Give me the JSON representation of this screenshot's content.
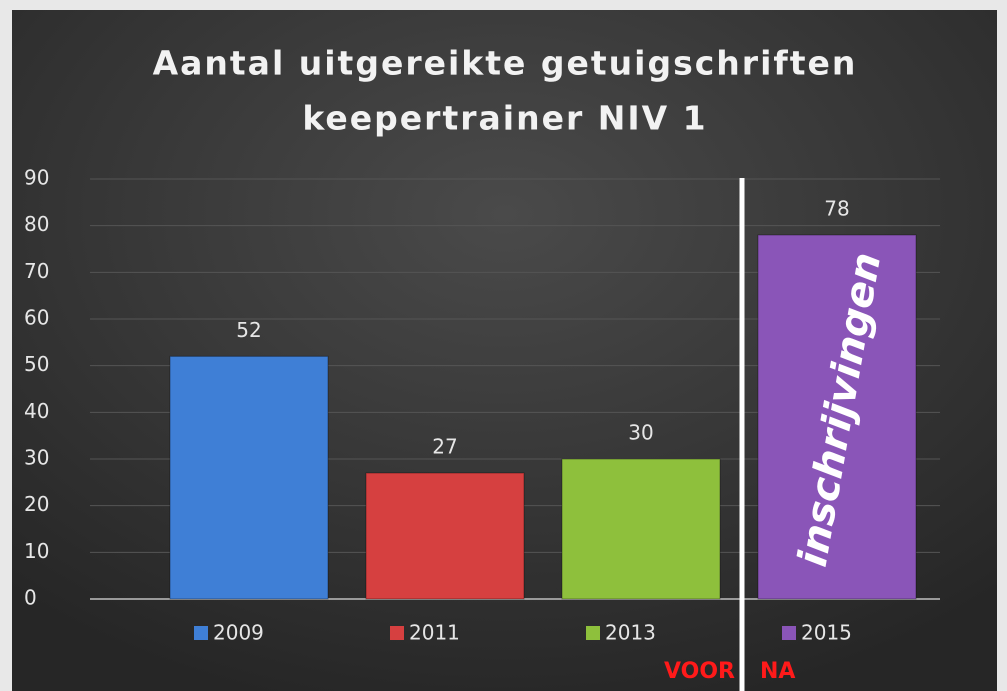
{
  "chart_data": {
    "type": "bar",
    "title": [
      "Aantal uitgereikte getuigschriften",
      "keepertrainer NIV 1"
    ],
    "categories": [
      "2009",
      "2011",
      "2013",
      "2015"
    ],
    "values": [
      52,
      27,
      30,
      78
    ],
    "colors": [
      "#3f7fd6",
      "#d64040",
      "#8ec03c",
      "#8a55b8"
    ],
    "ylim": [
      0,
      90
    ],
    "yticks": [
      0,
      10,
      20,
      30,
      40,
      50,
      60,
      70,
      80,
      90
    ],
    "grid": true,
    "annotations": [
      "inschrijvingen",
      "VOOR",
      "NA"
    ]
  }
}
